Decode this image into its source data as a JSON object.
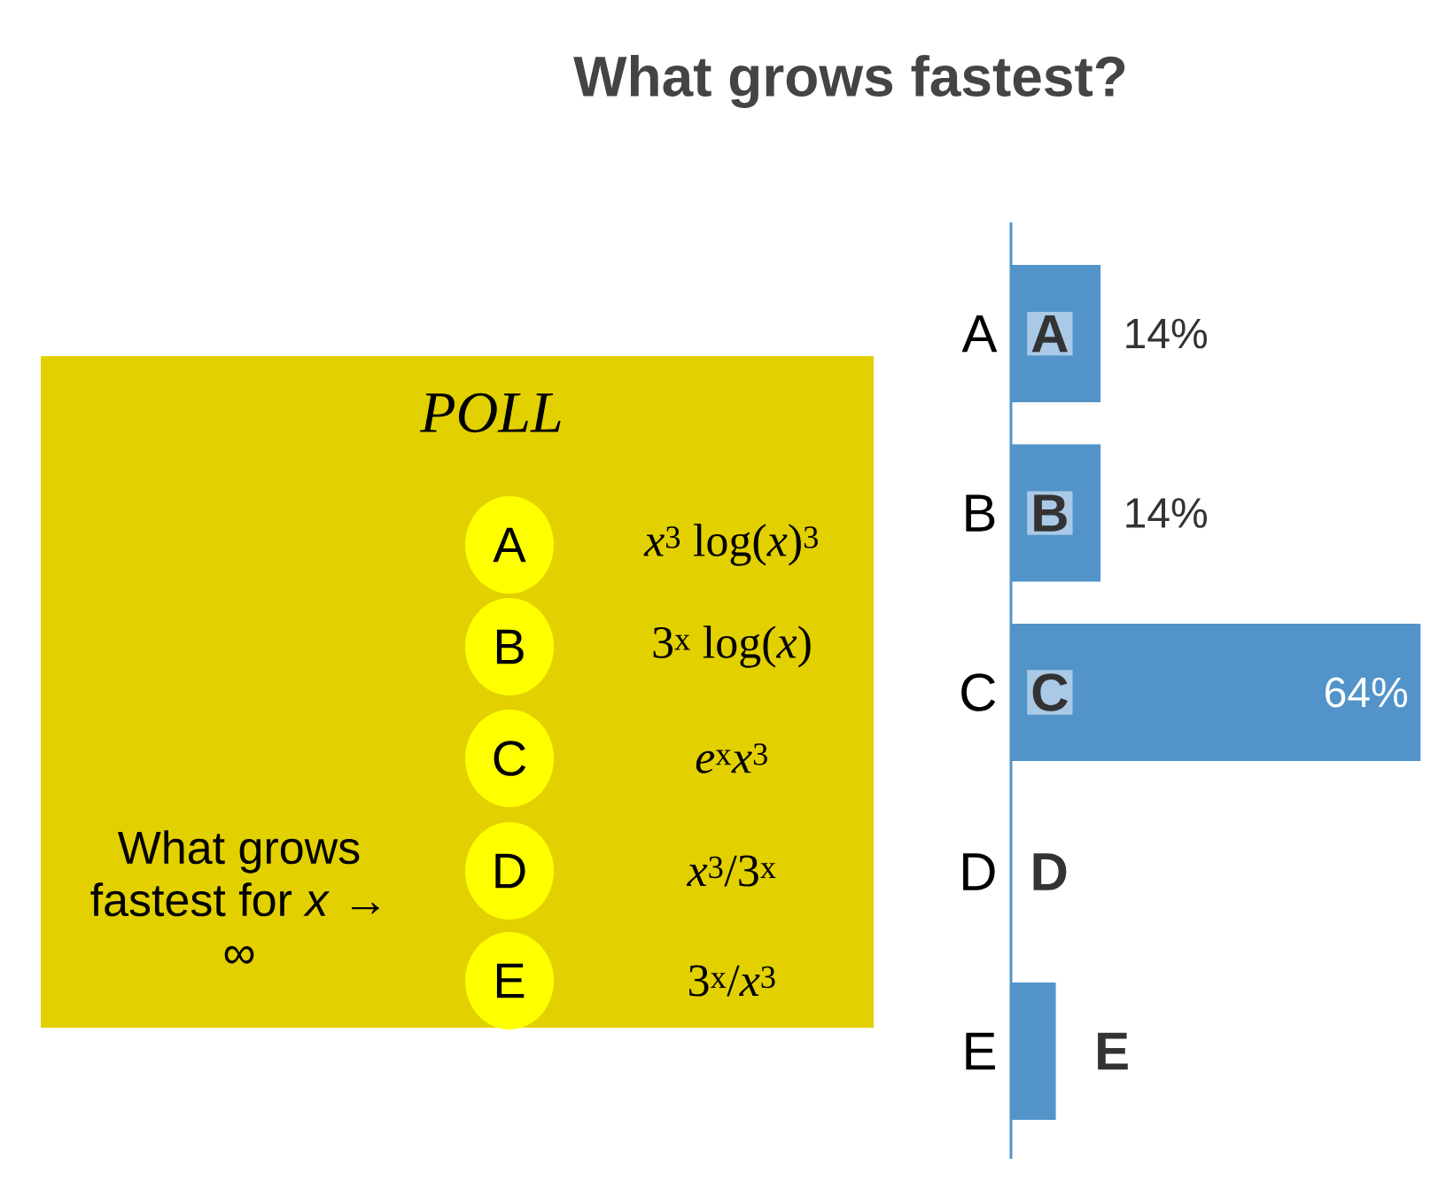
{
  "chart_data": [
    {
      "type": "other",
      "title": "POLL",
      "categories": [
        "A",
        "B",
        "C",
        "D",
        "E"
      ],
      "annotations": [
        "*x*$^{3}$ log(*x*)$^{3}$",
        "3$^{x}$ log(*x*)",
        "*e*$^{x}$*x*$^{3}$",
        "*x*$^{3}$/3$^{x}$",
        "3$^{x}$/*x*$^{3}$",
        "What grows fastest for *x* → ∞"
      ]
    },
    {
      "type": "bar",
      "title": "What grows fastest?",
      "orientation": "horizontal",
      "categories": [
        "A",
        "B",
        "C",
        "D",
        "E"
      ],
      "values": [
        14,
        14,
        64,
        0,
        7
      ],
      "value_labels": [
        "14%",
        "14%",
        "64%",
        null,
        null
      ],
      "color": "#5294c9",
      "tick_labels": "y"
    }
  ]
}
